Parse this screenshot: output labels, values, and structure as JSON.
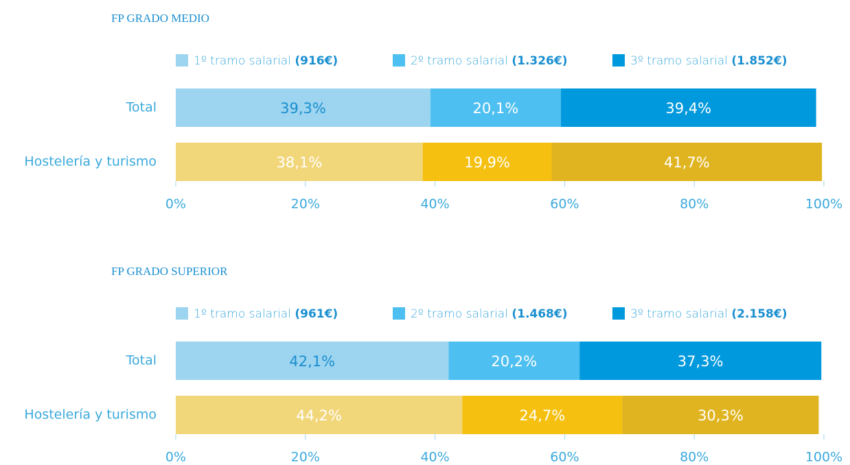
{
  "chart_data": [
    {
      "type": "stacked-bar-horizontal",
      "title": "FP GRADO MEDIO",
      "categories": [
        "Total",
        "Hostelería y turismo"
      ],
      "series": [
        {
          "name": "1º tramo salarial",
          "amount": "(916€)",
          "color": "#9dd4ef",
          "colors": [
            "#9dd4ef",
            "#f2d67a"
          ],
          "values": [
            39.3,
            38.1
          ],
          "value_labels": [
            "39,3%",
            "38,1%"
          ]
        },
        {
          "name": "2º tramo salarial",
          "amount": "(1.326€)",
          "color": "#4dbff0",
          "colors": [
            "#4dbff0",
            "#f5c00f"
          ],
          "values": [
            20.1,
            19.9
          ],
          "value_labels": [
            "20,1%",
            "19,9%"
          ]
        },
        {
          "name": "3º tramo salarial",
          "amount": "(1.852€)",
          "color": "#0099dd",
          "colors": [
            "#0099dd",
            "#e0b420"
          ],
          "values": [
            39.4,
            41.7
          ],
          "value_labels": [
            "39,4%",
            "41,7%"
          ]
        }
      ],
      "xlim": [
        0,
        100
      ],
      "xticks": [
        {
          "value": 0,
          "label": "0%"
        },
        {
          "value": 20,
          "label": "20%"
        },
        {
          "value": 40,
          "label": "40%"
        },
        {
          "value": 60,
          "label": "60%"
        },
        {
          "value": 80,
          "label": "80%"
        },
        {
          "value": 100,
          "label": "100%"
        }
      ]
    },
    {
      "type": "stacked-bar-horizontal",
      "title": "FP GRADO SUPERIOR",
      "categories": [
        "Total",
        "Hostelería y turismo"
      ],
      "series": [
        {
          "name": "1º tramo salarial",
          "amount": "(961€)",
          "color": "#9dd4ef",
          "colors": [
            "#9dd4ef",
            "#f2d67a"
          ],
          "values": [
            42.1,
            44.2
          ],
          "value_labels": [
            "42,1%",
            "44,2%"
          ]
        },
        {
          "name": "2º tramo salarial",
          "amount": "(1.468€)",
          "color": "#4dbff0",
          "colors": [
            "#4dbff0",
            "#f5c00f"
          ],
          "values": [
            20.2,
            24.7
          ],
          "value_labels": [
            "20,2%",
            "24,7%"
          ]
        },
        {
          "name": "3º tramo salarial",
          "amount": "(2.158€)",
          "color": "#0099dd",
          "colors": [
            "#0099dd",
            "#e0b420"
          ],
          "values": [
            37.3,
            30.3
          ],
          "value_labels": [
            "37,3%",
            "30,3%"
          ]
        }
      ],
      "xlim": [
        0,
        100
      ],
      "xticks": [
        {
          "value": 0,
          "label": "0%"
        },
        {
          "value": 20,
          "label": "20%"
        },
        {
          "value": 40,
          "label": "40%"
        },
        {
          "value": 60,
          "label": "60%"
        },
        {
          "value": 80,
          "label": "80%"
        },
        {
          "value": 100,
          "label": "100%"
        }
      ]
    }
  ]
}
